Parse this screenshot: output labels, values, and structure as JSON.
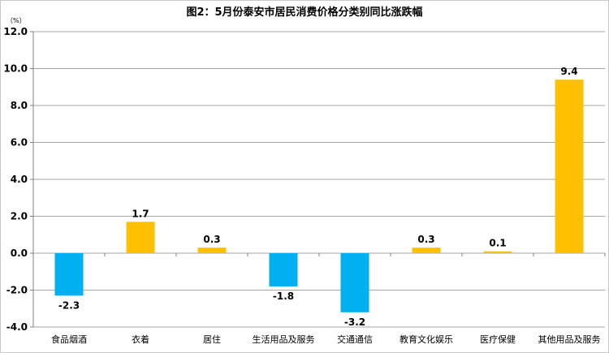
{
  "chart_data": {
    "type": "bar",
    "title": "图2：5月份泰安市居民消费价格分类别同比涨跌幅",
    "unit_label": "（%）",
    "categories": [
      "食品烟酒",
      "衣着",
      "居住",
      "生活用品及服务",
      "交通通信",
      "教育文化娱乐",
      "医疗保健",
      "其他用品及服务"
    ],
    "values": [
      -2.3,
      1.7,
      0.3,
      -1.8,
      -3.2,
      0.3,
      0.1,
      9.4
    ],
    "data_labels": [
      "-2.3",
      "1.7",
      "0.3",
      "-1.8",
      "-3.2",
      "0.3",
      "0.1",
      "9.4"
    ],
    "ylim": [
      -4.0,
      12.0
    ],
    "yticks": [
      "-4.0",
      "-2.0",
      "0.0",
      "2.0",
      "4.0",
      "6.0",
      "8.0",
      "10.0",
      "12.0"
    ],
    "ytick_values": [
      -4,
      -2,
      0,
      2,
      4,
      6,
      8,
      10,
      12
    ],
    "grid": true,
    "legend": "none",
    "colors": {
      "positive": "#FFC000",
      "negative": "#00B0F0",
      "grid": "#A6A6A6",
      "axis": "#808080"
    }
  }
}
